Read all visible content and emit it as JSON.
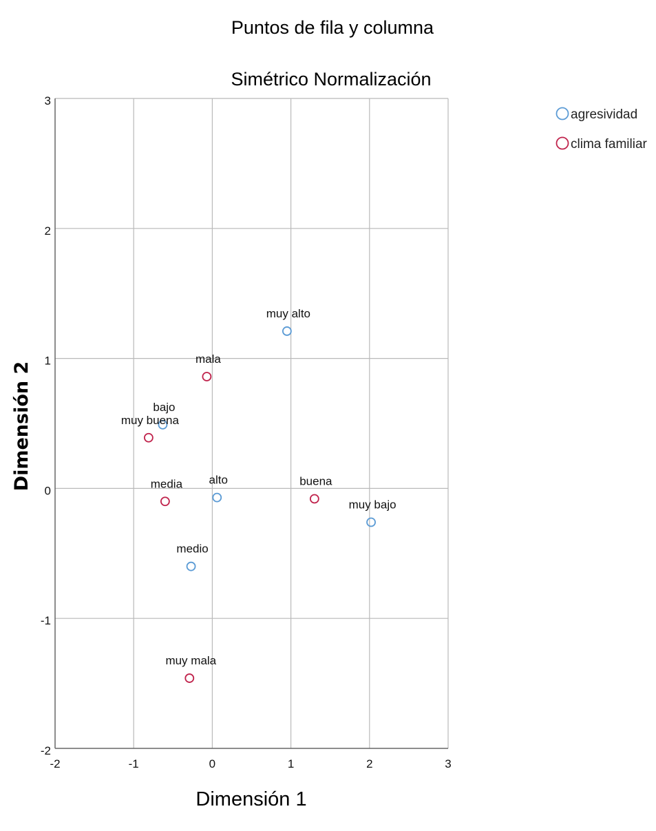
{
  "chart_data": {
    "type": "scatter",
    "title": "Puntos de fila y columna",
    "subtitle": "Simétrico Normalización",
    "xlabel": "Dimensión 1",
    "ylabel": "Dimensión 2",
    "xlim": [
      -2,
      3
    ],
    "ylim": [
      -2,
      3
    ],
    "xticks": [
      -2,
      -1,
      0,
      1,
      2,
      3
    ],
    "yticks": [
      -2,
      -1,
      0,
      1,
      2,
      3
    ],
    "grid": true,
    "legend_position": "top-right",
    "series": [
      {
        "name": "agresividad",
        "color": "#5b9bd5",
        "points": [
          {
            "label": "muy alto",
            "x": 0.95,
            "y": 1.21
          },
          {
            "label": "bajo",
            "x": -0.63,
            "y": 0.49
          },
          {
            "label": "alto",
            "x": 0.06,
            "y": -0.07
          },
          {
            "label": "medio",
            "x": -0.27,
            "y": -0.6
          },
          {
            "label": "muy bajo",
            "x": 2.02,
            "y": -0.26
          }
        ]
      },
      {
        "name": "clima familiar",
        "color": "#c0234c",
        "points": [
          {
            "label": "mala",
            "x": -0.07,
            "y": 0.86
          },
          {
            "label": "muy buena",
            "x": -0.81,
            "y": 0.39
          },
          {
            "label": "media",
            "x": -0.6,
            "y": -0.1
          },
          {
            "label": "buena",
            "x": 1.3,
            "y": -0.08
          },
          {
            "label": "muy mala",
            "x": -0.29,
            "y": -1.46
          }
        ]
      }
    ]
  }
}
